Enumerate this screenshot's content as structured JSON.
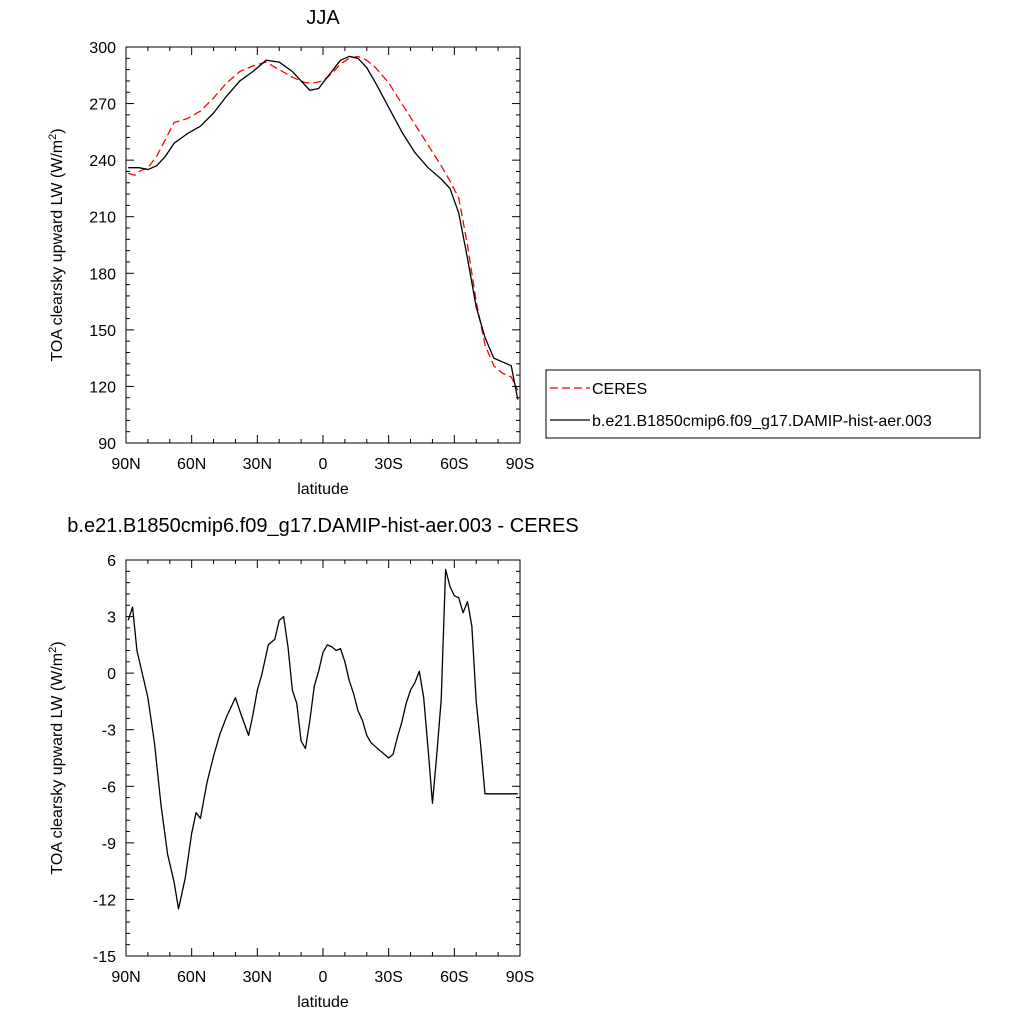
{
  "chart_data": [
    {
      "type": "line",
      "title": "JJA",
      "xlabel": "latitude",
      "ylabel": "TOA clearsky upward LW (W/m",
      "ylabel_sup": "2",
      "ylabel_close": ")",
      "xlim": [
        90,
        -90
      ],
      "ylim": [
        90,
        300
      ],
      "xticks": [
        {
          "value": 90,
          "label": "90N"
        },
        {
          "value": 60,
          "label": "60N"
        },
        {
          "value": 30,
          "label": "30N"
        },
        {
          "value": 0,
          "label": "0"
        },
        {
          "value": -30,
          "label": "30S"
        },
        {
          "value": -60,
          "label": "60S"
        },
        {
          "value": -90,
          "label": "90S"
        }
      ],
      "yticks": [
        90,
        120,
        150,
        180,
        210,
        240,
        270,
        300
      ],
      "legend": {
        "placement": "right",
        "entries": [
          {
            "name": "CERES",
            "color": "#ff0000",
            "dash": "dashed"
          },
          {
            "name": "b.e21.B1850cmip6.f09_g17.DAMIP-hist-aer.003",
            "color": "#000000",
            "dash": "solid"
          }
        ]
      },
      "series": [
        {
          "name": "CERES",
          "color": "#ff0000",
          "x": [
            89,
            86,
            84,
            80,
            76,
            72,
            68,
            62,
            56,
            50,
            44,
            38,
            32,
            26,
            20,
            14,
            8,
            4,
            0,
            -4,
            -8,
            -12,
            -16,
            -20,
            -24,
            -30,
            -36,
            -42,
            -48,
            -54,
            -58,
            -62,
            -66,
            -70,
            -74,
            -78,
            -82,
            -86,
            -89
          ],
          "y": [
            233,
            232,
            234,
            236,
            242,
            251,
            260,
            262,
            266,
            273,
            281,
            287,
            290,
            292,
            288,
            284,
            281,
            281,
            282,
            286,
            291,
            294,
            295,
            293,
            289,
            281,
            270,
            259,
            248,
            237,
            229,
            220,
            195,
            165,
            142,
            131,
            127,
            125,
            118
          ]
        },
        {
          "name": "b.e21.B1850cmip6.f09_g17.DAMIP-hist-aer.003",
          "color": "#000000",
          "x": [
            89,
            84,
            80,
            76,
            72,
            68,
            62,
            56,
            50,
            44,
            38,
            32,
            26,
            20,
            14,
            10,
            6,
            2,
            0,
            -4,
            -8,
            -12,
            -16,
            -20,
            -24,
            -30,
            -36,
            -42,
            -48,
            -54,
            -58,
            -62,
            -66,
            -70,
            -74,
            -78,
            -82,
            -86,
            -89
          ],
          "y": [
            236,
            236,
            235,
            237,
            242,
            249,
            254,
            258,
            265,
            274,
            282,
            287,
            293,
            292,
            287,
            282,
            277,
            278,
            281,
            287,
            293,
            295,
            294,
            289,
            281,
            268,
            255,
            244,
            236,
            230,
            225,
            212,
            188,
            162,
            146,
            135,
            133,
            131,
            113
          ]
        }
      ]
    },
    {
      "type": "line",
      "title": "b.e21.B1850cmip6.f09_g17.DAMIP-hist-aer.003 - CERES",
      "xlabel": "latitude",
      "ylabel": "TOA clearsky upward LW (W/m",
      "ylabel_sup": "2",
      "ylabel_close": ")",
      "xlim": [
        90,
        -90
      ],
      "ylim": [
        -15,
        6
      ],
      "xticks": [
        {
          "value": 90,
          "label": "90N"
        },
        {
          "value": 60,
          "label": "60N"
        },
        {
          "value": 30,
          "label": "30N"
        },
        {
          "value": 0,
          "label": "0"
        },
        {
          "value": -30,
          "label": "30S"
        },
        {
          "value": -60,
          "label": "60S"
        },
        {
          "value": -90,
          "label": "90S"
        }
      ],
      "yticks": [
        -15,
        -12,
        -9,
        -6,
        -3,
        0,
        3,
        6
      ],
      "series": [
        {
          "name": "b.e21.B1850cmip6.f09_g17.DAMIP-hist-aer.003 - CERES",
          "color": "#000000",
          "x": [
            89,
            87,
            85,
            83,
            80,
            77,
            74,
            71,
            68,
            66,
            63,
            60,
            58,
            56,
            53,
            50,
            47,
            44,
            40,
            38,
            34,
            32,
            30,
            28,
            25,
            22,
            20,
            18,
            16,
            14,
            12,
            10,
            8,
            6,
            4,
            2,
            0,
            -2,
            -4,
            -6,
            -8,
            -10,
            -12,
            -14,
            -16,
            -18,
            -20,
            -22,
            -24,
            -26,
            -28,
            -30,
            -32,
            -34,
            -36,
            -38,
            -40,
            -42,
            -44,
            -46,
            -48,
            -50,
            -52,
            -54,
            -56,
            -58,
            -60,
            -62,
            -64,
            -66,
            -68,
            -70,
            -72,
            -74,
            -76,
            -78,
            -80,
            -82,
            -84,
            -86,
            -88,
            -89
          ],
          "y": [
            2.8,
            3.5,
            1.2,
            0.2,
            -1.3,
            -3.7,
            -7.0,
            -9.6,
            -11.1,
            -12.5,
            -10.9,
            -8.5,
            -7.4,
            -7.7,
            -5.8,
            -4.4,
            -3.2,
            -2.3,
            -1.3,
            -2.0,
            -3.3,
            -2.2,
            -0.9,
            -0.1,
            1.5,
            1.8,
            2.8,
            3.0,
            1.4,
            -0.9,
            -1.6,
            -3.6,
            -4.0,
            -2.5,
            -0.7,
            0.1,
            1.1,
            1.5,
            1.4,
            1.2,
            1.3,
            0.6,
            -0.4,
            -1.1,
            -2.0,
            -2.5,
            -3.3,
            -3.7,
            -3.9,
            -4.1,
            -4.3,
            -4.5,
            -4.3,
            -3.4,
            -2.6,
            -1.6,
            -0.9,
            -0.5,
            0.1,
            -1.3,
            -4.0,
            -6.9,
            -4.3,
            -1.4,
            5.5,
            4.6,
            4.1,
            4.0,
            3.2,
            3.8,
            2.5,
            -1.5,
            -3.8,
            -6.4,
            -6.4,
            -6.4,
            -6.4,
            -6.4,
            -6.4,
            -6.4,
            -6.4,
            -6.4
          ]
        }
      ]
    }
  ]
}
